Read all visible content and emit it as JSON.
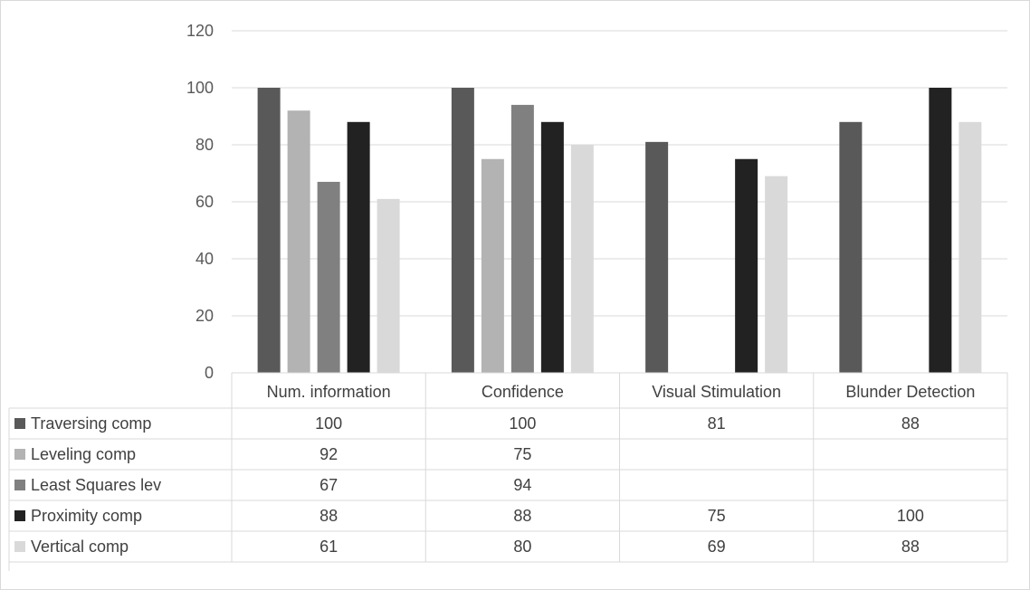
{
  "chart_data": {
    "type": "bar",
    "categories": [
      "Num. information",
      "Confidence",
      "Visual Stimulation",
      "Blunder Detection"
    ],
    "series": [
      {
        "name": "Traversing comp",
        "color": "#595959",
        "values": [
          100,
          100,
          81,
          88
        ]
      },
      {
        "name": "Leveling comp",
        "color": "#b3b3b3",
        "values": [
          92,
          75,
          null,
          null
        ]
      },
      {
        "name": "Least Squares lev",
        "color": "#808080",
        "values": [
          67,
          94,
          null,
          null
        ]
      },
      {
        "name": "Proximity comp",
        "color": "#222222",
        "values": [
          88,
          88,
          75,
          100
        ]
      },
      {
        "name": "Vertical comp",
        "color": "#d9d9d9",
        "values": [
          61,
          80,
          69,
          88
        ]
      }
    ],
    "y_ticks": [
      "0",
      "20",
      "40",
      "60",
      "80",
      "100",
      "120"
    ],
    "ylim": [
      0,
      120
    ],
    "grid": true,
    "legend": "data-table-below"
  }
}
